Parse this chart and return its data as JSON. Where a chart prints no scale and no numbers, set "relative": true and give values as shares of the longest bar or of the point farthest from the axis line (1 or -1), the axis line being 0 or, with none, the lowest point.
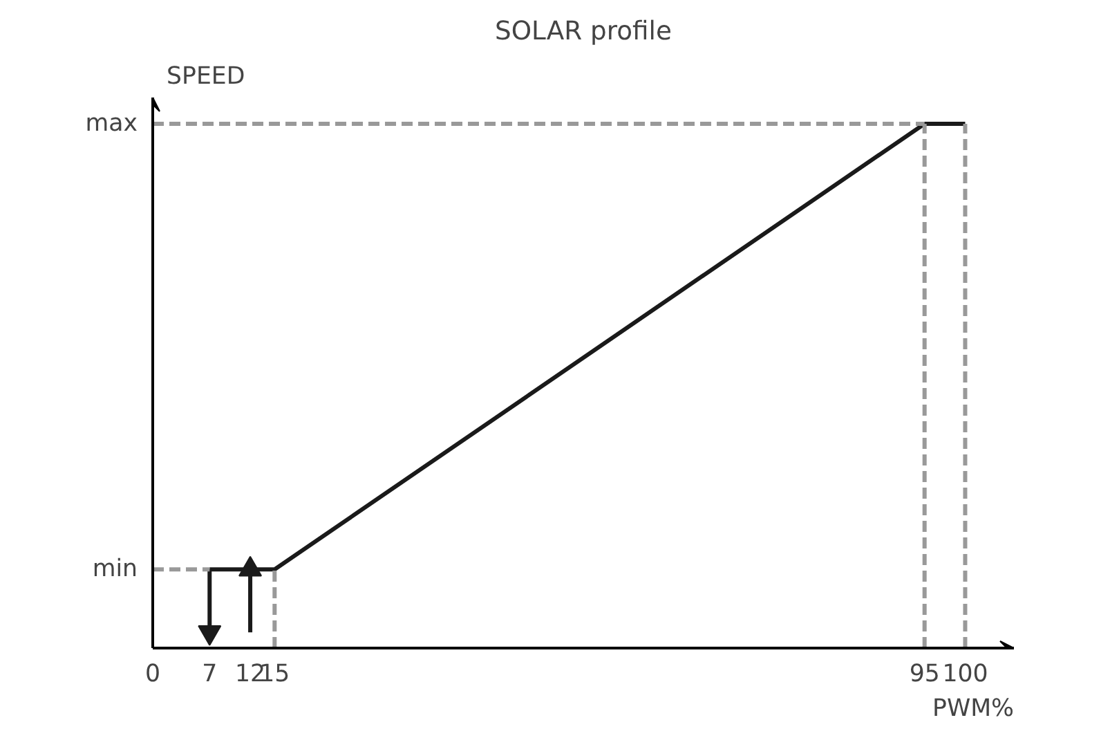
{
  "chart_data": {
    "type": "line",
    "title": "SOLAR profile",
    "xlabel": "PWM%",
    "ylabel": "SPEED",
    "xlim": [
      0,
      106
    ],
    "xticks": [
      0,
      7,
      12,
      15,
      95,
      100
    ],
    "relative": true,
    "annotations": [
      "min",
      "max"
    ],
    "grid": false,
    "marker": "none",
    "series": [
      {
        "color": "#1a1a1a",
        "line_style": "solid",
        "x": [
          7,
          15,
          95,
          100
        ],
        "values": [
          0.15,
          0.15,
          1,
          1
        ]
      },
      {
        "color": "#1a1a1a",
        "line_style": "solid",
        "marker": "triangle",
        "x": [
          7,
          7
        ],
        "values": [
          0.15,
          0.03
        ]
      },
      {
        "color": "#1a1a1a",
        "line_style": "solid",
        "marker": "triangle",
        "x": [
          12,
          12
        ],
        "values": [
          0.03,
          0.15
        ]
      },
      {
        "color": "#999999",
        "line_style": "dashed",
        "x": [
          0,
          7
        ],
        "values": [
          0.15,
          0.15
        ]
      },
      {
        "color": "#999999",
        "line_style": "dashed",
        "x": [
          0,
          95
        ],
        "values": [
          1,
          1
        ]
      },
      {
        "color": "#999999",
        "line_style": "dashed",
        "x": [
          15,
          15
        ],
        "values": [
          0,
          0.15
        ]
      },
      {
        "color": "#999999",
        "line_style": "dashed",
        "x": [
          95,
          95
        ],
        "values": [
          0,
          1
        ]
      },
      {
        "color": "#999999",
        "line_style": "dashed",
        "x": [
          100,
          100
        ],
        "values": [
          0,
          1
        ]
      }
    ]
  }
}
